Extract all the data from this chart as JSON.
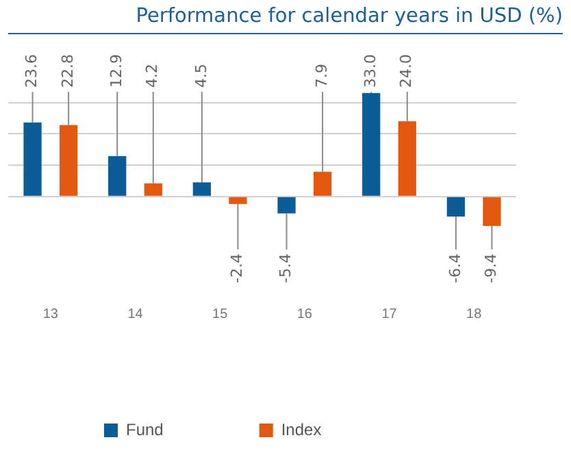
{
  "chart_data": {
    "type": "bar",
    "title": "Performance for calendar years in USD (%)",
    "categories": [
      "13",
      "14",
      "15",
      "16",
      "17",
      "18"
    ],
    "series": [
      {
        "name": "Fund",
        "color": "#0b5c97",
        "values": [
          23.6,
          12.9,
          4.5,
          -5.4,
          33.0,
          -6.4
        ],
        "value_labels": [
          "23.6",
          "12.9",
          "4.5",
          "-5.4",
          "33.0",
          "-6.4"
        ]
      },
      {
        "name": "Index",
        "color": "#e2580e",
        "values": [
          22.8,
          4.2,
          -2.4,
          7.9,
          24.0,
          -9.4
        ],
        "value_labels": [
          "22.8",
          "4.2",
          "-2.4",
          "7.9",
          "24.0",
          "-9.4"
        ]
      }
    ],
    "yticks": [
      {
        "value": 0,
        "label": null
      },
      {
        "value": 10,
        "label": null
      },
      {
        "value": 20,
        "label": null
      },
      {
        "value": 30,
        "label": null
      }
    ],
    "grid": "y",
    "tick_labels": "x",
    "legend": "bottom"
  }
}
